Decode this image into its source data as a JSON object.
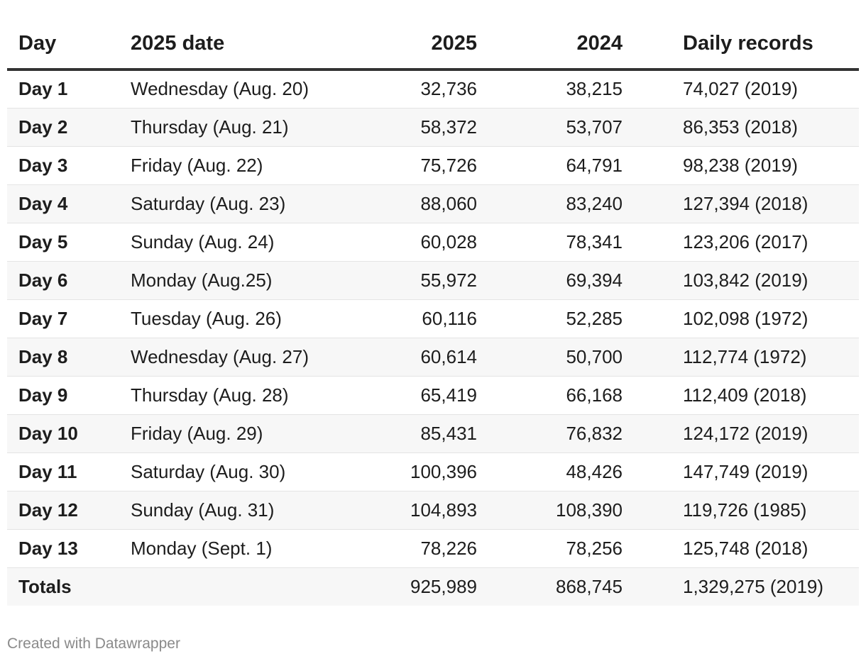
{
  "chart_data": {
    "type": "table",
    "columns": [
      "Day",
      "2025 date",
      "2025",
      "2024",
      "Daily records"
    ],
    "rows": [
      [
        "Day 1",
        "Wednesday (Aug. 20)",
        "32,736",
        "38,215",
        "74,027 (2019)"
      ],
      [
        "Day 2",
        "Thursday (Aug. 21)",
        "58,372",
        "53,707",
        "86,353 (2018)"
      ],
      [
        "Day 3",
        "Friday (Aug. 22)",
        "75,726",
        "64,791",
        "98,238 (2019)"
      ],
      [
        "Day 4",
        "Saturday (Aug. 23)",
        "88,060",
        "83,240",
        "127,394 (2018)"
      ],
      [
        "Day 5",
        "Sunday (Aug. 24)",
        "60,028",
        "78,341",
        "123,206 (2017)"
      ],
      [
        "Day 6",
        "Monday (Aug.25)",
        "55,972",
        "69,394",
        "103,842 (2019)"
      ],
      [
        "Day 7",
        "Tuesday (Aug. 26)",
        "60,116",
        "52,285",
        "102,098 (1972)"
      ],
      [
        "Day 8",
        "Wednesday (Aug. 27)",
        "60,614",
        "50,700",
        "112,774 (1972)"
      ],
      [
        "Day 9",
        "Thursday (Aug. 28)",
        "65,419",
        "66,168",
        "112,409 (2018)"
      ],
      [
        "Day 10",
        "Friday (Aug. 29)",
        "85,431",
        "76,832",
        "124,172 (2019)"
      ],
      [
        "Day 11",
        "Saturday (Aug. 30)",
        "100,396",
        "48,426",
        "147,749 (2019)"
      ],
      [
        "Day 12",
        "Sunday (Aug. 31)",
        "104,893",
        "108,390",
        "119,726 (1985)"
      ],
      [
        "Day 13",
        "Monday (Sept. 1)",
        "78,226",
        "78,256",
        "125,748 (2018)"
      ],
      [
        "Totals",
        "",
        "925,989",
        "868,745",
        "1,329,275 (2019)"
      ]
    ]
  },
  "footer": "Created with Datawrapper",
  "colors": {
    "header_rule": "#333333",
    "stripe": "#f7f7f7",
    "footer_text": "#8a8a8a"
  }
}
